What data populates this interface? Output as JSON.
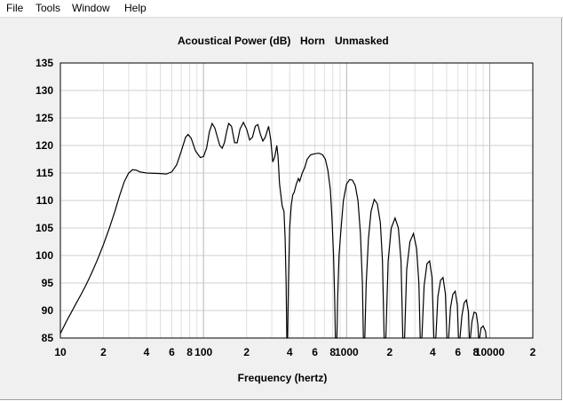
{
  "menu": {
    "file": "File",
    "tools": "Tools",
    "window": "Window",
    "help": "Help"
  },
  "chart_data": {
    "type": "line",
    "title": "Acoustical Power (dB)",
    "title_extra": [
      "Horn",
      "Unmasked"
    ],
    "xlabel": "Frequency (hertz)",
    "ylabel": "",
    "x_scale": "log",
    "xlim": [
      10,
      20000
    ],
    "ylim": [
      85,
      135
    ],
    "grid": true,
    "y_ticks": [
      "85",
      "90",
      "95",
      "100",
      "105",
      "110",
      "115",
      "120",
      "125",
      "130",
      "135"
    ],
    "x_ticks": [
      {
        "f": 10,
        "label": "10"
      },
      {
        "f": 20,
        "label": "2"
      },
      {
        "f": 40,
        "label": "4"
      },
      {
        "f": 60,
        "label": "6"
      },
      {
        "f": 80,
        "label": "8"
      },
      {
        "f": 100,
        "label": "100"
      },
      {
        "f": 200,
        "label": "2"
      },
      {
        "f": 400,
        "label": "4"
      },
      {
        "f": 600,
        "label": "6"
      },
      {
        "f": 800,
        "label": "8"
      },
      {
        "f": 1000,
        "label": "1000"
      },
      {
        "f": 2000,
        "label": "2"
      },
      {
        "f": 4000,
        "label": "4"
      },
      {
        "f": 6000,
        "label": "6"
      },
      {
        "f": 8000,
        "label": "8"
      },
      {
        "f": 10000,
        "label": "10000"
      },
      {
        "f": 20000,
        "label": "2"
      }
    ],
    "series": [
      {
        "color": "#000000",
        "points": [
          [
            10,
            85.8
          ],
          [
            11,
            88
          ],
          [
            12,
            89.8
          ],
          [
            13,
            91.5
          ],
          [
            14,
            93
          ],
          [
            15,
            94.5
          ],
          [
            16,
            96
          ],
          [
            17,
            97.5
          ],
          [
            18,
            99
          ],
          [
            19,
            100.5
          ],
          [
            20,
            102
          ],
          [
            22,
            105
          ],
          [
            24,
            108
          ],
          [
            26,
            111
          ],
          [
            28,
            113.5
          ],
          [
            30,
            115
          ],
          [
            32,
            115.6
          ],
          [
            34,
            115.5
          ],
          [
            36,
            115.2
          ],
          [
            40,
            115
          ],
          [
            50,
            114.9
          ],
          [
            55,
            114.8
          ],
          [
            60,
            115.2
          ],
          [
            65,
            116.5
          ],
          [
            70,
            119
          ],
          [
            75,
            121.5
          ],
          [
            78,
            122
          ],
          [
            82,
            121.3
          ],
          [
            88,
            119
          ],
          [
            95,
            117.8
          ],
          [
            100,
            118
          ],
          [
            105,
            119.5
          ],
          [
            110,
            122.5
          ],
          [
            115,
            124
          ],
          [
            120,
            123.2
          ],
          [
            130,
            120
          ],
          [
            135,
            119.5
          ],
          [
            140,
            120.5
          ],
          [
            145,
            122.5
          ],
          [
            150,
            124
          ],
          [
            157,
            123.5
          ],
          [
            165,
            120.5
          ],
          [
            172,
            120.5
          ],
          [
            180,
            123
          ],
          [
            190,
            124.2
          ],
          [
            200,
            123
          ],
          [
            210,
            121
          ],
          [
            220,
            121.5
          ],
          [
            230,
            123.5
          ],
          [
            240,
            123.8
          ],
          [
            250,
            122
          ],
          [
            260,
            120.8
          ],
          [
            270,
            121.5
          ],
          [
            285,
            123.5
          ],
          [
            295,
            121
          ],
          [
            305,
            117
          ],
          [
            315,
            118
          ],
          [
            325,
            120
          ],
          [
            332,
            118
          ],
          [
            340,
            113
          ],
          [
            355,
            109
          ],
          [
            365,
            108
          ],
          [
            372,
            103
          ],
          [
            378,
            95
          ],
          [
            382,
            85
          ],
          [
            387,
            85
          ],
          [
            392,
            95
          ],
          [
            400,
            105
          ],
          [
            410,
            109
          ],
          [
            420,
            111
          ],
          [
            430,
            111.5
          ],
          [
            445,
            113
          ],
          [
            460,
            114
          ],
          [
            470,
            113.5
          ],
          [
            490,
            115
          ],
          [
            510,
            116
          ],
          [
            530,
            117.5
          ],
          [
            560,
            118.3
          ],
          [
            600,
            118.5
          ],
          [
            640,
            118.6
          ],
          [
            680,
            118.3
          ],
          [
            710,
            117.5
          ],
          [
            740,
            115.5
          ],
          [
            770,
            112
          ],
          [
            790,
            107
          ],
          [
            810,
            100
          ],
          [
            825,
            92
          ],
          [
            835,
            85
          ],
          [
            855,
            85
          ],
          [
            865,
            92
          ],
          [
            885,
            100
          ],
          [
            915,
            105
          ],
          [
            950,
            110
          ],
          [
            1000,
            113
          ],
          [
            1050,
            113.8
          ],
          [
            1100,
            113.7
          ],
          [
            1150,
            112.7
          ],
          [
            1200,
            110
          ],
          [
            1250,
            104
          ],
          [
            1290,
            95
          ],
          [
            1310,
            85
          ],
          [
            1340,
            85
          ],
          [
            1370,
            95
          ],
          [
            1420,
            103
          ],
          [
            1480,
            108
          ],
          [
            1560,
            110.2
          ],
          [
            1640,
            109.4
          ],
          [
            1720,
            106
          ],
          [
            1780,
            99
          ],
          [
            1830,
            85
          ],
          [
            1880,
            85
          ],
          [
            1950,
            99
          ],
          [
            2050,
            105
          ],
          [
            2180,
            106.8
          ],
          [
            2300,
            105
          ],
          [
            2400,
            99
          ],
          [
            2470,
            85
          ],
          [
            2540,
            85
          ],
          [
            2630,
            97.5
          ],
          [
            2770,
            102.5
          ],
          [
            2930,
            104
          ],
          [
            3080,
            101.3
          ],
          [
            3200,
            95
          ],
          [
            3270,
            85
          ],
          [
            3360,
            85
          ],
          [
            3480,
            94.5
          ],
          [
            3640,
            98.5
          ],
          [
            3800,
            99
          ],
          [
            3950,
            96
          ],
          [
            4070,
            85
          ],
          [
            4200,
            85
          ],
          [
            4340,
            92.5
          ],
          [
            4530,
            95.5
          ],
          [
            4720,
            96
          ],
          [
            4900,
            93
          ],
          [
            5020,
            85
          ],
          [
            5160,
            85
          ],
          [
            5320,
            90.5
          ],
          [
            5520,
            92.9
          ],
          [
            5740,
            93.5
          ],
          [
            5940,
            91
          ],
          [
            6050,
            85
          ],
          [
            6200,
            85
          ],
          [
            6390,
            89
          ],
          [
            6630,
            91.4
          ],
          [
            6870,
            91.9
          ],
          [
            7100,
            89.8
          ],
          [
            7200,
            85
          ],
          [
            7330,
            85
          ],
          [
            7520,
            88
          ],
          [
            7780,
            89.7
          ],
          [
            8050,
            89.5
          ],
          [
            8260,
            87.5
          ],
          [
            8350,
            85
          ],
          [
            8500,
            85
          ],
          [
            8700,
            86.8
          ],
          [
            9000,
            87.2
          ],
          [
            9350,
            86.2
          ],
          [
            9450,
            85
          ]
        ]
      }
    ]
  }
}
